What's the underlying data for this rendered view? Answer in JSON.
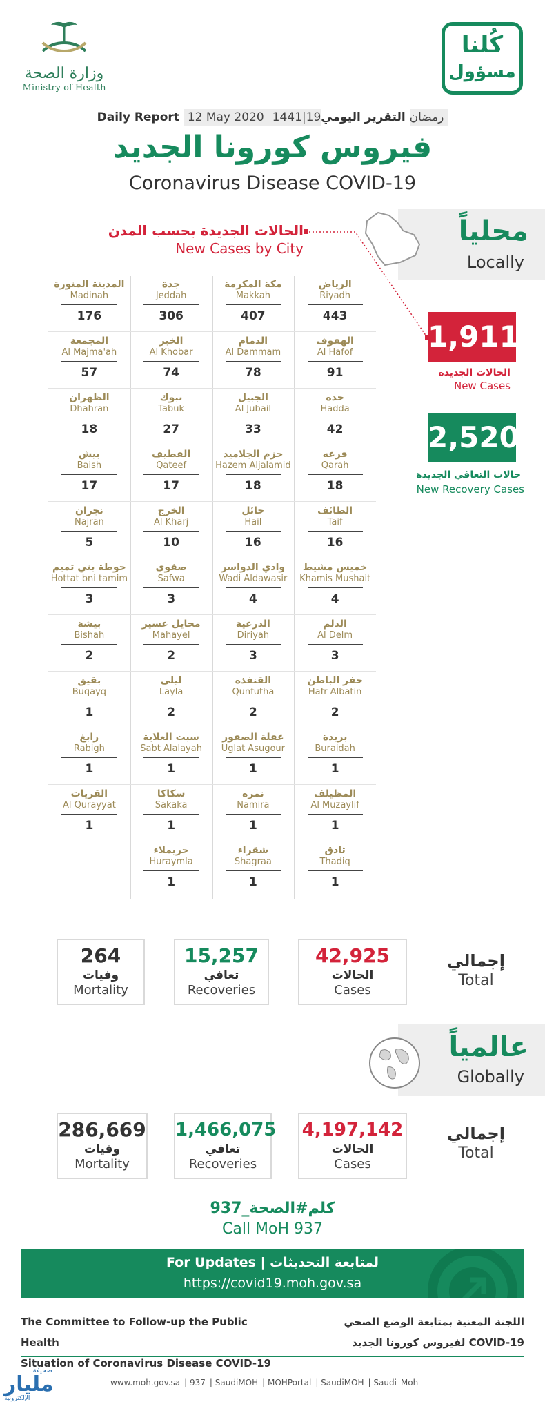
{
  "header": {
    "moh_name_ar": "وزارة الصحة",
    "moh_name_en": "Ministry of Health",
    "campaign_line1": "كُلنا",
    "campaign_line2": "مسؤول",
    "report_en": "Daily Report",
    "report_date": "12 May 2020",
    "report_hijri": "1441|19رمضان",
    "report_ar": "التقرير اليومي",
    "title_ar": "فيروس كورونا الجديد",
    "title_en": "Coronavirus Disease COVID-19"
  },
  "local": {
    "label_ar": "محلياً",
    "label_en": "Locally",
    "city_title_ar": "الحالات الجديدة بحسب المدن",
    "city_title_en": "New Cases by City",
    "new_cases": "1,911",
    "new_cases_ar": "الحالات الجديدة",
    "new_cases_en": "New Cases",
    "new_recovery": "2,520",
    "new_recovery_ar": "حالات التعافي الجديدة",
    "new_recovery_en": "New Recovery Cases",
    "cities": [
      {
        "ar": "الرياض",
        "en": "Riyadh",
        "n": "443"
      },
      {
        "ar": "مكة المكرمة",
        "en": "Makkah",
        "n": "407"
      },
      {
        "ar": "جدة",
        "en": "Jeddah",
        "n": "306"
      },
      {
        "ar": "المدينة المنورة",
        "en": "Madinah",
        "n": "176"
      },
      {
        "ar": "الهفوف",
        "en": "Al Hafof",
        "n": "91"
      },
      {
        "ar": "الدمام",
        "en": "Al Dammam",
        "n": "78"
      },
      {
        "ar": "الخبر",
        "en": "Al Khobar",
        "n": "74"
      },
      {
        "ar": "المجمعة",
        "en": "Al Majma'ah",
        "n": "57"
      },
      {
        "ar": "حدة",
        "en": "Hadda",
        "n": "42"
      },
      {
        "ar": "الجبيل",
        "en": "Al Jubail",
        "n": "33"
      },
      {
        "ar": "تبوك",
        "en": "Tabuk",
        "n": "27"
      },
      {
        "ar": "الظهران",
        "en": "Dhahran",
        "n": "18"
      },
      {
        "ar": "قرعه",
        "en": "Qarah",
        "n": "18"
      },
      {
        "ar": "حزم الجلاميد",
        "en": "Hazem Aljalamid",
        "n": "18"
      },
      {
        "ar": "القطيف",
        "en": "Qateef",
        "n": "17"
      },
      {
        "ar": "بيش",
        "en": "Baish",
        "n": "17"
      },
      {
        "ar": "الطائف",
        "en": "Taif",
        "n": "16"
      },
      {
        "ar": "حائل",
        "en": "Hail",
        "n": "16"
      },
      {
        "ar": "الخرج",
        "en": "Al Kharj",
        "n": "10"
      },
      {
        "ar": "نجران",
        "en": "Najran",
        "n": "5"
      },
      {
        "ar": "خميس مشيط",
        "en": "Khamis Mushait",
        "n": "4"
      },
      {
        "ar": "وادي الدواسر",
        "en": "Wadi Aldawasir",
        "n": "4"
      },
      {
        "ar": "صفوى",
        "en": "Safwa",
        "n": "3"
      },
      {
        "ar": "حوطة بني تميم",
        "en": "Hottat bni tamim",
        "n": "3"
      },
      {
        "ar": "الدلم",
        "en": "Al Delm",
        "n": "3"
      },
      {
        "ar": "الدرعية",
        "en": "Diriyah",
        "n": "3"
      },
      {
        "ar": "محايل عسير",
        "en": "Mahayel",
        "n": "2"
      },
      {
        "ar": "بيشة",
        "en": "Bishah",
        "n": "2"
      },
      {
        "ar": "حفر الباطن",
        "en": "Hafr Albatin",
        "n": "2"
      },
      {
        "ar": "القنفذة",
        "en": "Qunfutha",
        "n": "2"
      },
      {
        "ar": "ليلى",
        "en": "Layla",
        "n": "2"
      },
      {
        "ar": "بقيق",
        "en": "Buqayq",
        "n": "1"
      },
      {
        "ar": "بريدة",
        "en": "Buraidah",
        "n": "1"
      },
      {
        "ar": "عقلة الصقور",
        "en": "Uglat Asugour",
        "n": "1"
      },
      {
        "ar": "سبت العلاية",
        "en": "Sabt Alalayah",
        "n": "1"
      },
      {
        "ar": "رابغ",
        "en": "Rabigh",
        "n": "1"
      },
      {
        "ar": "المظيلف",
        "en": "Al Muzaylif",
        "n": "1"
      },
      {
        "ar": "نمرة",
        "en": "Namira",
        "n": "1"
      },
      {
        "ar": "سكاكا",
        "en": "Sakaka",
        "n": "1"
      },
      {
        "ar": "القريات",
        "en": "Al Qurayyat",
        "n": "1"
      },
      {
        "ar": "ثادق",
        "en": "Thadiq",
        "n": "1"
      },
      {
        "ar": "شقراء",
        "en": "Shagraa",
        "n": "1"
      },
      {
        "ar": "حريملاء",
        "en": "Huraymla",
        "n": "1"
      }
    ],
    "total_ar": "إجمالي",
    "total_en": "Total",
    "cases": "42,925",
    "cases_ar": "الحالات",
    "cases_en": "Cases",
    "recoveries": "15,257",
    "recoveries_ar": "تعافي",
    "recoveries_en": "Recoveries",
    "mortality": "264",
    "mortality_ar": "وفيات",
    "mortality_en": "Mortality"
  },
  "global": {
    "label_ar": "عالمياً",
    "label_en": "Globally",
    "total_ar": "إجمالي",
    "total_en": "Total",
    "cases": "4,197,142",
    "cases_ar": "الحالات",
    "cases_en": "Cases",
    "recoveries": "1,466,075",
    "recoveries_ar": "تعافي",
    "recoveries_en": "Recoveries",
    "mortality": "286,669",
    "mortality_ar": "وفيات",
    "mortality_en": "Mortality"
  },
  "hotline": {
    "ar": "كلم#الصحة_937",
    "en": "Call MoH 937"
  },
  "updates": {
    "title": "For Updates  |  لمتابعة التحديثات",
    "url": "https://covid19.moh.gov.sa"
  },
  "committee": {
    "en_line1": "The Committee to Follow-up the Public Health",
    "en_line2": "Situation of Coronavirus Disease COVID-19",
    "ar_line1": "اللجنة المعنية بمتابعة الوضع الصحي",
    "ar_line2": "لفيروس كورونا الجديد COVID-19"
  },
  "footer": {
    "links": [
      "www.moh.gov.sa",
      "937",
      "SaudiMOH",
      "MOHPortal",
      "SaudiMOH",
      "Saudi_Moh"
    ]
  },
  "corner": {
    "label_top": "صحيفة",
    "label_main": "مليار",
    "label_bottom": "الإلكترونية"
  },
  "colors": {
    "green": "#168a5d",
    "red": "#d3233a",
    "gold": "#9c8a57"
  }
}
